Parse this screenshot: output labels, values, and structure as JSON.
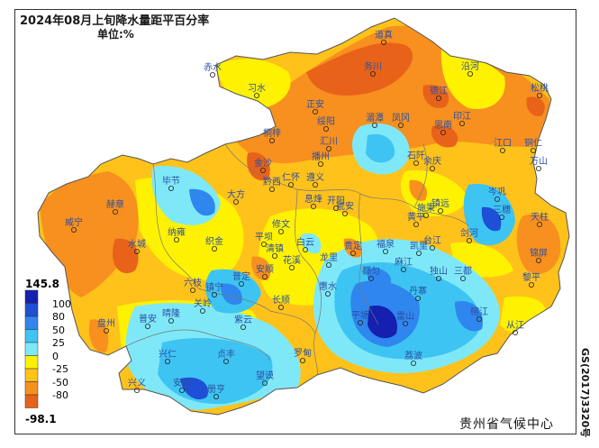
{
  "map": {
    "title": "2024年08月上旬降水量距平百分率",
    "unit": "单位:%",
    "credit": "贵州省气候中心",
    "approval_number": "GS(2017)3320号"
  },
  "legend": {
    "max_label": "145.8",
    "min_label": "-98.1",
    "classes": [
      {
        "label": "100",
        "color": "#1520b0"
      },
      {
        "label": "80",
        "color": "#1f4fd6"
      },
      {
        "label": "50",
        "color": "#2f86ee"
      },
      {
        "label": "25",
        "color": "#3ec4f2"
      },
      {
        "label": "0",
        "color": "#7fe8f8"
      },
      {
        "label": "-25",
        "color": "#fff200"
      },
      {
        "label": "-50",
        "color": "#ffc21a"
      },
      {
        "label": "-80",
        "color": "#f7901e"
      },
      {
        "label": "",
        "color": "#e8621a"
      }
    ]
  },
  "stations": [
    {
      "name": "赤水"
    },
    {
      "name": "习水"
    },
    {
      "name": "桐梓"
    },
    {
      "name": "正安"
    },
    {
      "name": "道真"
    },
    {
      "name": "务川"
    },
    {
      "name": "沿河"
    },
    {
      "name": "德江"
    },
    {
      "name": "印江"
    },
    {
      "name": "思南"
    },
    {
      "name": "松桃"
    },
    {
      "name": "江口"
    },
    {
      "name": "铜仁"
    },
    {
      "name": "万山"
    },
    {
      "name": "凤冈"
    },
    {
      "name": "湄潭"
    },
    {
      "name": "余庆"
    },
    {
      "name": "石阡"
    },
    {
      "name": "绥阳"
    },
    {
      "name": "汇川"
    },
    {
      "name": "播州"
    },
    {
      "name": "遵义"
    },
    {
      "name": "仁怀"
    },
    {
      "name": "金沙"
    },
    {
      "name": "黔西"
    },
    {
      "name": "大方"
    },
    {
      "name": "毕节"
    },
    {
      "name": "赫章"
    },
    {
      "name": "威宁"
    },
    {
      "name": "纳雍"
    },
    {
      "name": "织金"
    },
    {
      "name": "清镇"
    },
    {
      "name": "修文"
    },
    {
      "name": "息烽"
    },
    {
      "name": "开阳"
    },
    {
      "name": "白云"
    },
    {
      "name": "花溪"
    },
    {
      "name": "龙里"
    },
    {
      "name": "贵定"
    },
    {
      "name": "瓮安"
    },
    {
      "name": "黄平"
    },
    {
      "name": "施秉"
    },
    {
      "name": "镇远"
    },
    {
      "name": "岑巩"
    },
    {
      "name": "三穗"
    },
    {
      "name": "天柱"
    },
    {
      "name": "锦屏"
    },
    {
      "name": "剑河"
    },
    {
      "name": "台江"
    },
    {
      "name": "凯里"
    },
    {
      "name": "麻江"
    },
    {
      "name": "丹寨"
    },
    {
      "name": "雷山"
    },
    {
      "name": "榕江"
    },
    {
      "name": "黎平"
    },
    {
      "name": "从江"
    },
    {
      "name": "都匀"
    },
    {
      "name": "福泉"
    },
    {
      "name": "平塘"
    },
    {
      "name": "独山"
    },
    {
      "name": "荔波"
    },
    {
      "name": "三都"
    },
    {
      "name": "惠水"
    },
    {
      "name": "长顺"
    },
    {
      "name": "罗甸"
    },
    {
      "name": "平坝"
    },
    {
      "name": "安顺"
    },
    {
      "name": "普定"
    },
    {
      "name": "镇宁"
    },
    {
      "name": "关岭"
    },
    {
      "name": "紫云"
    },
    {
      "name": "六枝"
    },
    {
      "name": "水城"
    },
    {
      "name": "盘州"
    },
    {
      "name": "普安"
    },
    {
      "name": "晴隆"
    },
    {
      "name": "兴仁"
    },
    {
      "name": "贞丰"
    },
    {
      "name": "望谟"
    },
    {
      "name": "册亨"
    },
    {
      "name": "安龙"
    },
    {
      "name": "兴义"
    }
  ]
}
